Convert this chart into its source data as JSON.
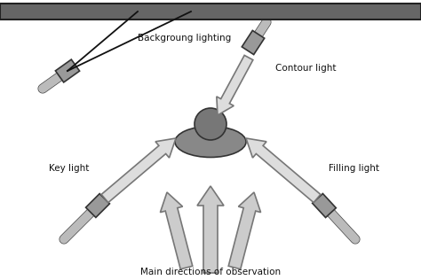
{
  "bg_color": "#ffffff",
  "bar_facecolor": "#666666",
  "bar_edgecolor": "#222222",
  "lamp_tube_color": "#bbbbbb",
  "lamp_tube_edge": "#444444",
  "lamp_head_face": "#999999",
  "lamp_head_edge": "#333333",
  "arrow_face": "#cccccc",
  "arrow_edge": "#777777",
  "line_color": "#111111",
  "text_color": "#111111",
  "subject_shadow_face": "#888888",
  "subject_shadow_edge": "#333333",
  "subject_head_face": "#777777",
  "subject_head_edge": "#333333",
  "labels": {
    "backgroung": "Backgroung lighting",
    "contour": "Contour light",
    "key": "Key light",
    "filling": "Filling light",
    "main": "Main directions of observation"
  },
  "fontsize": 7.5
}
